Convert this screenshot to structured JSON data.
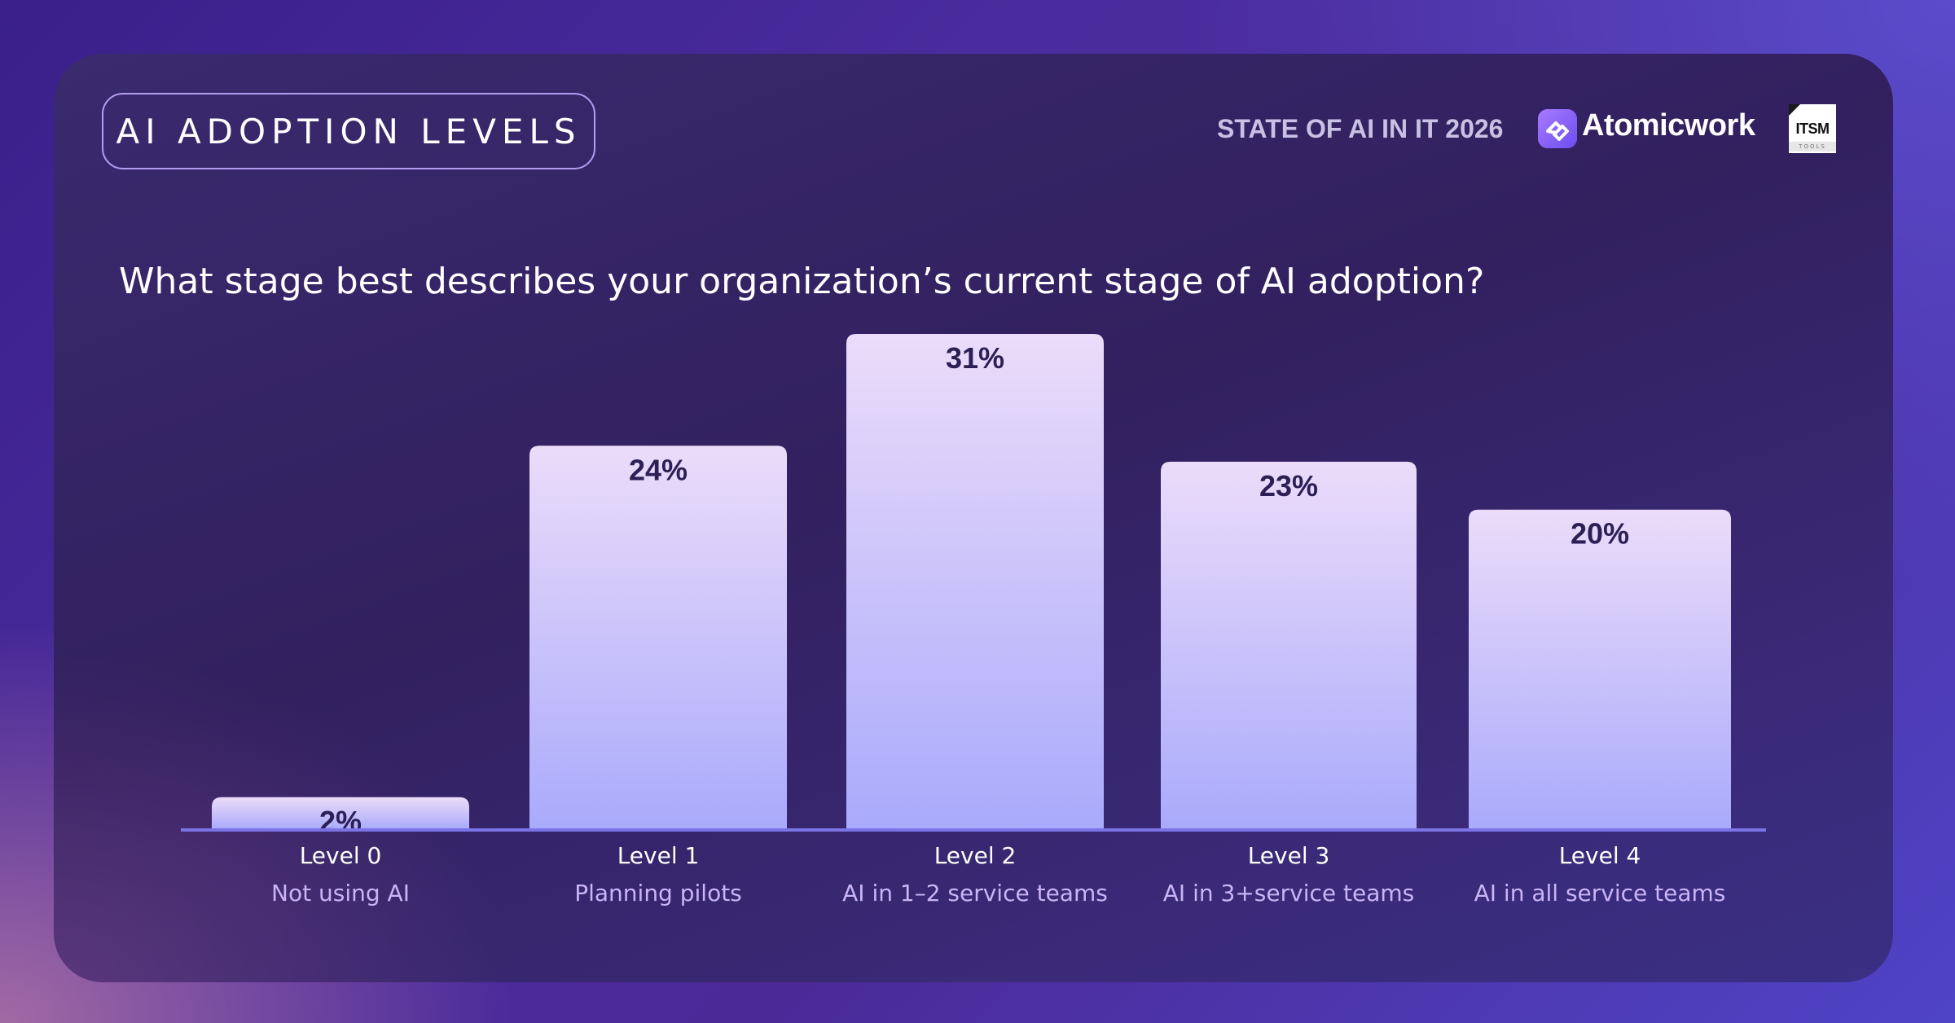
{
  "header": {
    "pill_label": "AI ADOPTION LEVELS",
    "report_label": "STATE OF AI IN IT 2026",
    "brand_name": "Atomicwork",
    "partner_logo": "ITSM",
    "partner_logo_sub": "TOOLS"
  },
  "question": "What stage best describes your organization’s current stage of AI adoption?",
  "colors": {
    "bar_top": "#ecdcfa",
    "bar_bottom": "#a9aafb",
    "baseline": "#7b74e6",
    "value_label": "#2c1f55",
    "level_label": "#ffffff",
    "sublabel": "#c9b4f5"
  },
  "chart_data": {
    "type": "bar",
    "title": "What stage best describes your organization’s current stage of AI adoption?",
    "categories": [
      "Level 0",
      "Level 1",
      "Level 2",
      "Level 3",
      "Level 4"
    ],
    "subcategories": [
      "Not using AI",
      "Planning pilots",
      "AI in 1–2 service teams",
      "AI in 3+service teams",
      "AI in all service teams"
    ],
    "values": [
      2,
      24,
      31,
      23,
      20
    ],
    "value_labels": [
      "2%",
      "24%",
      "31%",
      "23%",
      "20%"
    ],
    "unit": "%",
    "ylim": [
      0,
      31
    ],
    "grid": false,
    "legend": "none"
  }
}
